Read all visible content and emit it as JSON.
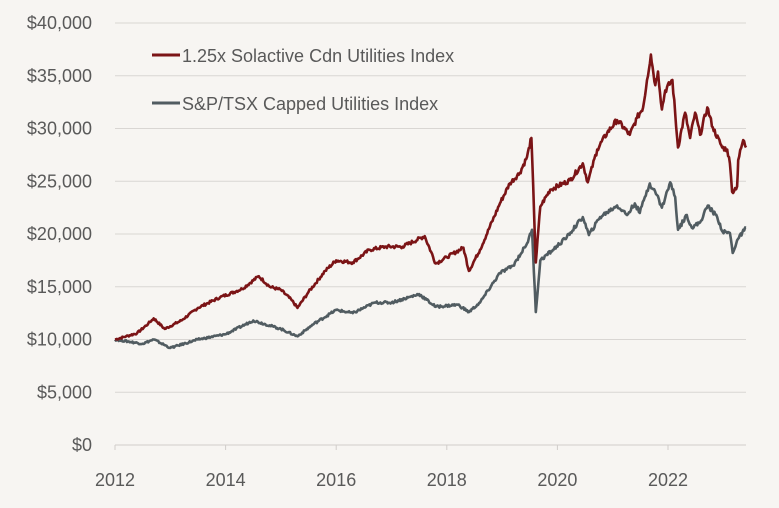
{
  "chart_data": {
    "type": "line",
    "title": "",
    "xlabel": "",
    "ylabel": "",
    "xlim": [
      2012,
      2023.45
    ],
    "ylim": [
      0,
      40000
    ],
    "grid": "horizontal",
    "legend_position": "top-left",
    "x_ticks": [
      "2012",
      "2014",
      "2016",
      "2018",
      "2020",
      "2022"
    ],
    "y_ticks": [
      "$0",
      "$5,000",
      "$10,000",
      "$15,000",
      "$20,000",
      "$25,000",
      "$30,000",
      "$35,000",
      "$40,000"
    ],
    "series": [
      {
        "name": "1.25x Solactive Cdn Utilities Index",
        "color": "#7b1416",
        "x": [
          2012.0,
          2012.2,
          2012.4,
          2012.6,
          2012.7,
          2012.9,
          2013.2,
          2013.5,
          2013.9,
          2014.3,
          2014.6,
          2014.8,
          2015.0,
          2015.2,
          2015.3,
          2015.5,
          2015.8,
          2016.0,
          2016.3,
          2016.6,
          2016.9,
          2017.2,
          2017.6,
          2017.8,
          2018.0,
          2018.3,
          2018.4,
          2018.6,
          2018.96,
          2019.14,
          2019.32,
          2019.45,
          2019.53,
          2019.61,
          2019.69,
          2019.87,
          2020.23,
          2020.46,
          2020.55,
          2020.72,
          2020.9,
          2021.08,
          2021.31,
          2021.44,
          2021.55,
          2021.62,
          2021.69,
          2021.77,
          2021.82,
          2021.89,
          2021.95,
          2022.08,
          2022.18,
          2022.31,
          2022.4,
          2022.49,
          2022.58,
          2022.71,
          2022.81,
          2022.98,
          2023.07,
          2023.12,
          2023.16,
          2023.25,
          2023.27,
          2023.36,
          2023.41
        ],
        "values": [
          10000,
          10300,
          10600,
          11500,
          12000,
          11000,
          11800,
          13000,
          14000,
          14800,
          16000,
          15000,
          14700,
          13700,
          13000,
          14500,
          16500,
          17500,
          17300,
          18500,
          18800,
          18800,
          19800,
          17200,
          17800,
          18700,
          16500,
          18500,
          22900,
          24800,
          25800,
          27300,
          29100,
          17300,
          22600,
          24200,
          25100,
          26700,
          24900,
          28000,
          29600,
          30800,
          29400,
          31000,
          32000,
          34600,
          37000,
          34100,
          35400,
          31800,
          33600,
          34600,
          28200,
          31500,
          29100,
          31500,
          29400,
          32000,
          30100,
          28200,
          28000,
          26700,
          24000,
          24500,
          27000,
          28900,
          28200
        ]
      },
      {
        "name": "S&P/TSX Capped Utilities Index",
        "color": "#515c61",
        "x": [
          2012.0,
          2012.5,
          2012.7,
          2013.0,
          2013.5,
          2014.0,
          2014.5,
          2015.0,
          2015.3,
          2015.6,
          2016.0,
          2016.3,
          2016.7,
          2017.0,
          2017.5,
          2017.8,
          2018.2,
          2018.4,
          2018.6,
          2018.96,
          2019.2,
          2019.45,
          2019.54,
          2019.61,
          2019.69,
          2019.92,
          2020.17,
          2020.46,
          2020.57,
          2020.77,
          2021.08,
          2021.26,
          2021.4,
          2021.49,
          2021.58,
          2021.67,
          2021.8,
          2021.89,
          2022.04,
          2022.13,
          2022.18,
          2022.34,
          2022.43,
          2022.58,
          2022.72,
          2022.89,
          2022.99,
          2023.12,
          2023.17,
          2023.25,
          2023.41
        ],
        "values": [
          10000,
          9600,
          10000,
          9200,
          10000,
          10500,
          11800,
          11000,
          10300,
          11500,
          12800,
          12500,
          13500,
          13500,
          14300,
          13100,
          13300,
          12600,
          13500,
          16300,
          17000,
          19100,
          20400,
          12600,
          17500,
          18500,
          19700,
          21600,
          19900,
          21600,
          22700,
          21800,
          22900,
          22000,
          23500,
          24800,
          23700,
          22500,
          24900,
          23500,
          20400,
          21800,
          20600,
          21100,
          22700,
          21600,
          20200,
          20100,
          18200,
          19400,
          20600
        ]
      }
    ]
  }
}
